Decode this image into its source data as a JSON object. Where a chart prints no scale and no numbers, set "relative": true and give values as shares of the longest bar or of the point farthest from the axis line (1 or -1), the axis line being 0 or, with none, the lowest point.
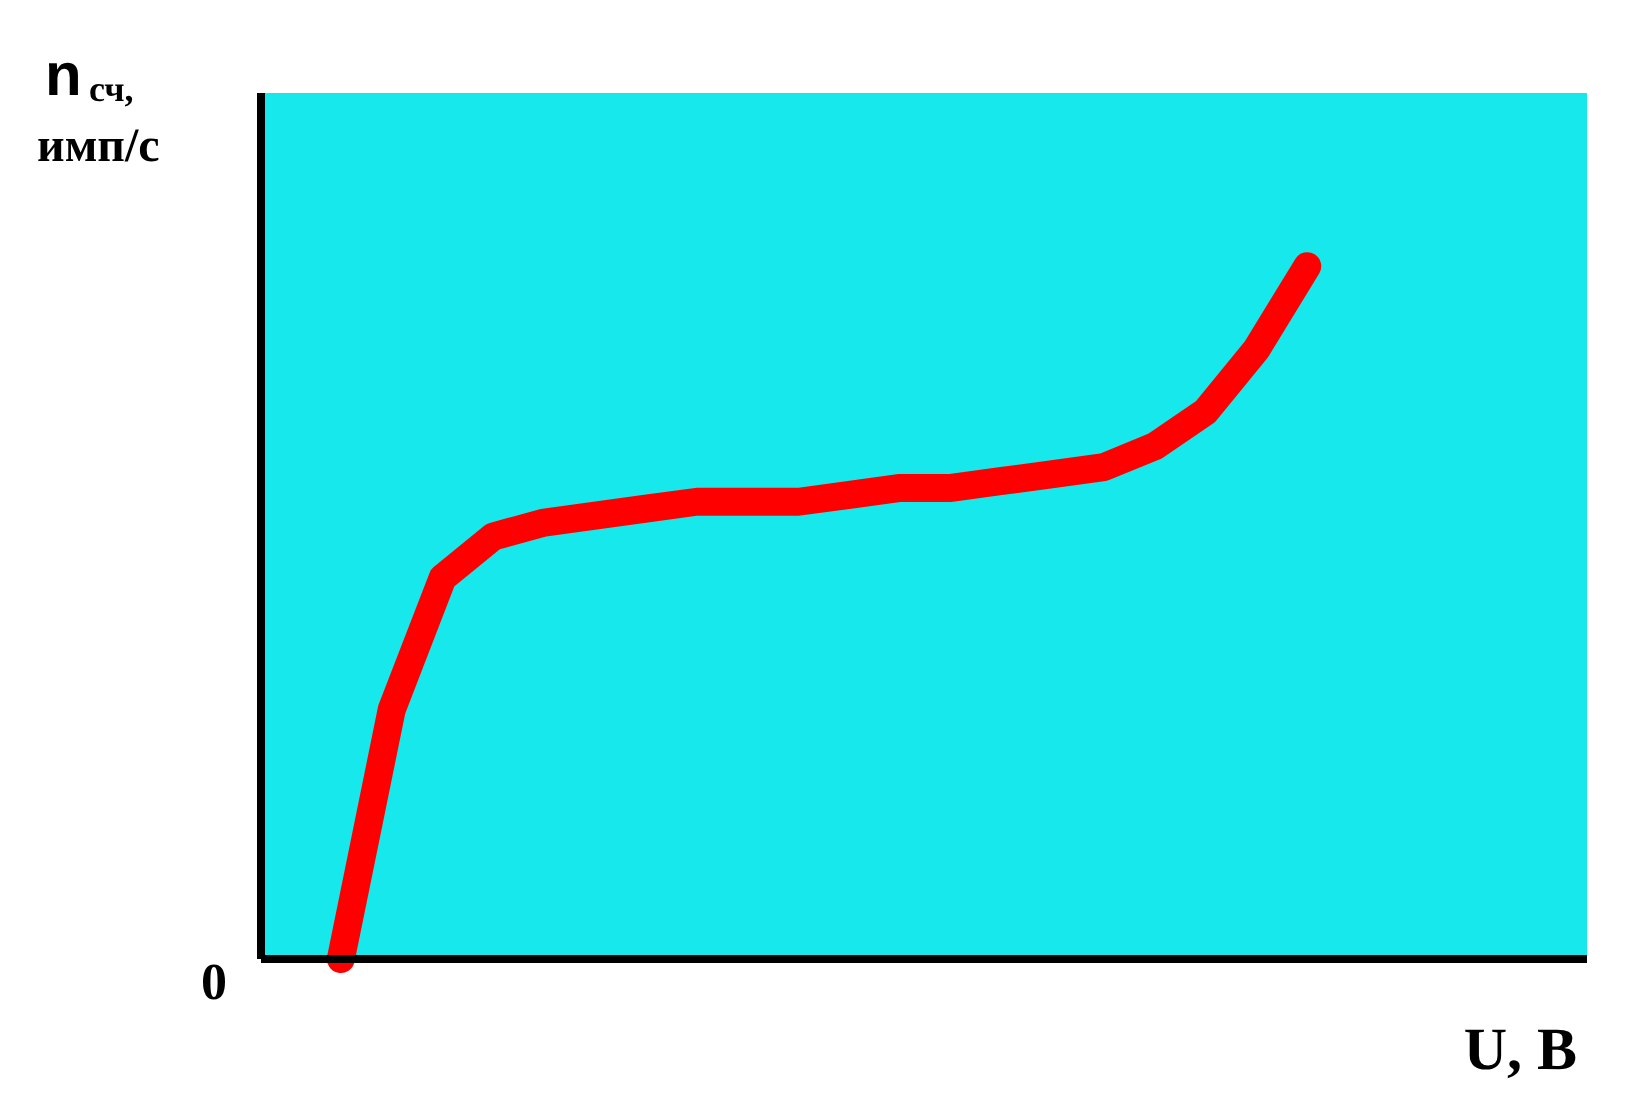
{
  "chart_data": {
    "type": "line",
    "relative": true,
    "xlabel": "U, В",
    "ylabel": "n$_{сч}$, имп/с",
    "annotations": [
      "0"
    ],
    "categories": [
      null,
      null,
      null,
      null,
      null,
      null,
      null,
      null,
      null,
      null,
      null,
      null,
      null,
      null,
      null,
      null,
      null,
      null,
      null,
      null
    ],
    "series": [
      {
        "color": "#ff0000",
        "values": [
          0,
          0.36,
          0.55,
          0.61,
          0.63,
          0.64,
          0.65,
          0.66,
          0.66,
          0.66,
          0.67,
          0.68,
          0.68,
          0.69,
          0.7,
          0.71,
          0.74,
          0.79,
          0.88,
          1
        ]
      }
    ],
    "grid": false,
    "legend": false,
    "line_style": "solid"
  }
}
